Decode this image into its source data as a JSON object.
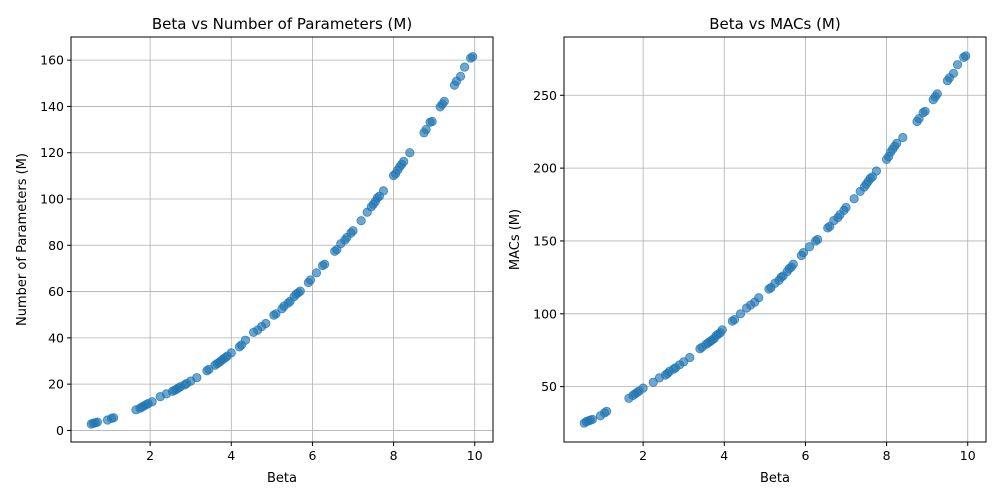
{
  "chart_data": [
    {
      "type": "scatter",
      "title": "Beta vs Number of Parameters (M)",
      "xlabel": "Beta",
      "ylabel": "Number of Parameters (M)",
      "xlim": [
        0.05,
        10.45
      ],
      "ylim": [
        -5,
        170
      ],
      "xticks": [
        2,
        4,
        6,
        8,
        10
      ],
      "yticks": [
        0,
        20,
        40,
        60,
        80,
        100,
        120,
        140,
        160
      ],
      "grid": true,
      "color": "#1f77b4",
      "series": [
        {
          "x": [
            0.55,
            0.6,
            0.65,
            0.7,
            0.95,
            1.05,
            1.1,
            1.65,
            1.75,
            1.8,
            1.85,
            1.9,
            1.95,
            2.05,
            2.25,
            2.4,
            2.55,
            2.6,
            2.65,
            2.7,
            2.75,
            2.85,
            2.9,
            3.0,
            3.15,
            3.4,
            3.45,
            3.6,
            3.65,
            3.7,
            3.75,
            3.8,
            3.85,
            3.9,
            4.0,
            4.2,
            4.25,
            4.35,
            4.55,
            4.65,
            4.75,
            4.85,
            5.05,
            5.1,
            5.25,
            5.3,
            5.4,
            5.45,
            5.55,
            5.6,
            5.65,
            5.7,
            5.9,
            5.95,
            6.1,
            6.25,
            6.3,
            6.55,
            6.6,
            6.7,
            6.8,
            6.85,
            6.95,
            7.0,
            7.2,
            7.35,
            7.45,
            7.5,
            7.55,
            7.6,
            7.65,
            7.75,
            8.0,
            8.05,
            8.1,
            8.15,
            8.2,
            8.25,
            8.4,
            8.75,
            8.8,
            8.9,
            8.95,
            9.15,
            9.2,
            9.25,
            9.5,
            9.55,
            9.65,
            9.75,
            9.9,
            9.95
          ],
          "y": [
            2.8,
            3.1,
            3.3,
            3.6,
            4.5,
            5.2,
            5.5,
            8.9,
            9.6,
            10.1,
            10.6,
            11.1,
            11.6,
            12.4,
            14.6,
            15.8,
            16.9,
            17.3,
            17.8,
            18.4,
            18.9,
            19.7,
            20.3,
            21.3,
            22.8,
            25.8,
            26.4,
            28.2,
            28.8,
            29.4,
            30.1,
            30.8,
            31.4,
            32.1,
            33.5,
            36.1,
            36.9,
            39.0,
            42.4,
            43.4,
            44.9,
            46.2,
            49.8,
            50.4,
            52.6,
            53.7,
            55.0,
            55.8,
            57.8,
            58.9,
            59.5,
            60.2,
            63.9,
            65.0,
            68.1,
            71.2,
            71.8,
            77.4,
            78.1,
            80.7,
            82.3,
            83.4,
            85.3,
            86.3,
            90.6,
            94.3,
            96.6,
            97.7,
            98.9,
            100.5,
            101.2,
            103.5,
            110.1,
            110.9,
            112.5,
            113.9,
            115.0,
            116.2,
            120.0,
            128.6,
            130.0,
            133.2,
            133.5,
            139.8,
            141.0,
            142.2,
            149.2,
            150.9,
            153.0,
            157.0,
            160.9,
            161.5
          ]
        }
      ]
    },
    {
      "type": "scatter",
      "title": "Beta vs MACs (M)",
      "xlabel": "Beta",
      "ylabel": "MACs (M)",
      "xlim": [
        0.05,
        10.45
      ],
      "ylim": [
        12,
        290
      ],
      "xticks": [
        2,
        4,
        6,
        8,
        10
      ],
      "yticks": [
        50,
        100,
        150,
        200,
        250
      ],
      "grid": true,
      "color": "#1f77b4",
      "series": [
        {
          "x": [
            0.55,
            0.6,
            0.65,
            0.7,
            0.75,
            0.95,
            1.05,
            1.1,
            1.65,
            1.75,
            1.8,
            1.85,
            1.9,
            2.0,
            2.25,
            2.4,
            2.55,
            2.6,
            2.65,
            2.75,
            2.8,
            2.9,
            3.0,
            3.15,
            3.4,
            3.45,
            3.55,
            3.6,
            3.65,
            3.7,
            3.75,
            3.8,
            3.85,
            3.9,
            3.95,
            4.2,
            4.25,
            4.4,
            4.55,
            4.65,
            4.75,
            4.85,
            5.1,
            5.15,
            5.25,
            5.35,
            5.4,
            5.45,
            5.55,
            5.6,
            5.65,
            5.7,
            5.9,
            5.95,
            6.1,
            6.25,
            6.3,
            6.55,
            6.6,
            6.7,
            6.8,
            6.85,
            6.95,
            7.0,
            7.2,
            7.35,
            7.45,
            7.5,
            7.55,
            7.6,
            7.65,
            7.75,
            8.0,
            8.05,
            8.1,
            8.15,
            8.2,
            8.25,
            8.4,
            8.75,
            8.8,
            8.9,
            8.95,
            9.15,
            9.2,
            9.25,
            9.5,
            9.55,
            9.65,
            9.75,
            9.9,
            9.95
          ],
          "y": [
            25,
            26,
            26.5,
            27,
            27.5,
            30,
            32,
            33,
            42,
            44,
            45,
            46,
            47,
            49,
            53,
            56,
            58,
            59,
            60.5,
            62,
            63,
            65,
            67,
            70,
            76,
            77,
            79,
            80,
            81,
            82,
            83,
            85,
            86,
            87,
            89,
            95,
            96,
            100,
            104,
            106,
            108,
            111,
            117,
            118,
            121,
            123,
            125,
            126,
            129,
            131,
            132,
            134,
            140,
            142,
            146,
            150,
            151,
            159,
            160,
            164,
            166,
            168,
            171,
            173,
            179,
            184,
            187,
            189,
            191,
            193,
            194,
            198,
            206,
            208,
            211,
            213,
            215,
            217,
            221,
            232,
            234,
            238,
            239,
            247,
            249,
            251,
            260,
            262,
            265,
            271,
            276,
            277
          ]
        }
      ]
    }
  ]
}
